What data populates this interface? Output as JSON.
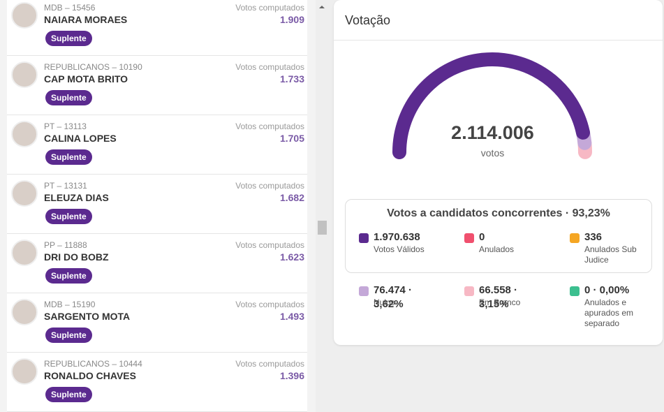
{
  "candidates": [
    {
      "party": "MDB – 15456",
      "name": "NAIARA MORAES",
      "votes_label": "Votos computados",
      "votes": "1.909",
      "status": "Suplente"
    },
    {
      "party": "REPUBLICANOS – 10190",
      "name": "CAP MOTA BRITO",
      "votes_label": "Votos computados",
      "votes": "1.733",
      "status": "Suplente"
    },
    {
      "party": "PT – 13113",
      "name": "CALINA LOPES",
      "votes_label": "Votos computados",
      "votes": "1.705",
      "status": "Suplente"
    },
    {
      "party": "PT – 13131",
      "name": "ELEUZA DIAS",
      "votes_label": "Votos computados",
      "votes": "1.682",
      "status": "Suplente"
    },
    {
      "party": "PP – 11888",
      "name": "DRI DO BOBZ",
      "votes_label": "Votos computados",
      "votes": "1.623",
      "status": "Suplente"
    },
    {
      "party": "MDB – 15190",
      "name": "SARGENTO MOTA",
      "votes_label": "Votos computados",
      "votes": "1.493",
      "status": "Suplente"
    },
    {
      "party": "REPUBLICANOS – 10444",
      "name": "RONALDO CHAVES",
      "votes_label": "Votos computados",
      "votes": "1.396",
      "status": "Suplente"
    }
  ],
  "card": {
    "title": "Votação",
    "total": "2.114.006",
    "total_unit": "votos",
    "summary": "Votos a candidatos concorrentes · 93,23%",
    "items": [
      {
        "value": "1.970.638",
        "label": "Votos Válidos",
        "color": "#5b2a8f"
      },
      {
        "value": "0",
        "label": "Anulados",
        "color": "#f0506e"
      },
      {
        "value": "336",
        "label": "Anulados Sub Judice",
        "color": "#f5a623"
      },
      {
        "value": "76.474 · 3,62%",
        "label": "Nulos",
        "color": "#c4a8d8"
      },
      {
        "value": "66.558 · 3,15%",
        "label": "Em Branco",
        "color": "#f7b8c4"
      },
      {
        "value": "0 · 0,00%",
        "label": "Anulados e apurados em separado",
        "color": "#3cbf8f"
      }
    ]
  }
}
